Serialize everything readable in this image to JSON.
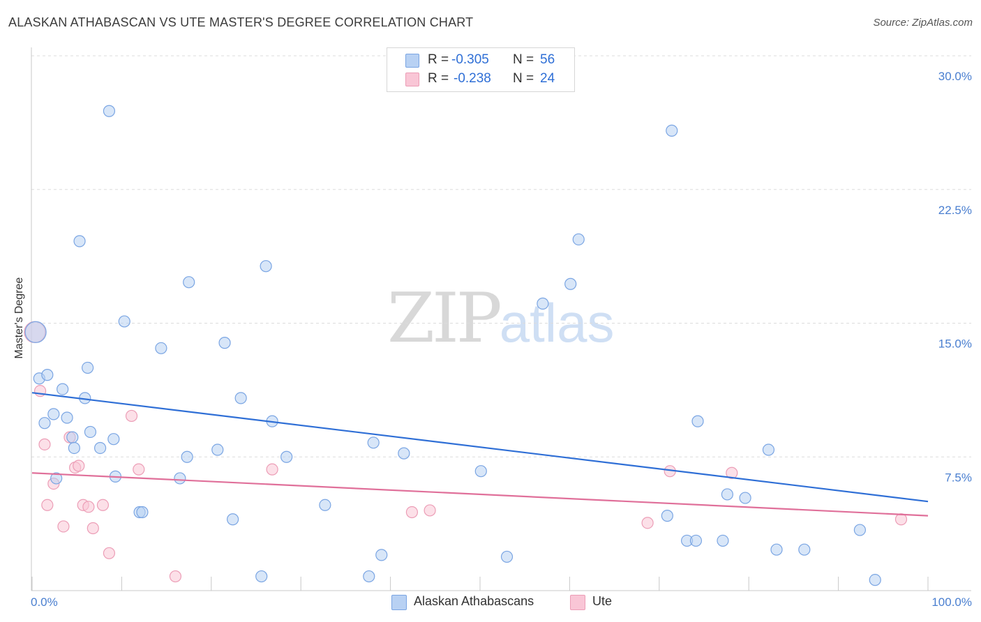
{
  "header": {
    "title": "ALASKAN ATHABASCAN VS UTE MASTER'S DEGREE CORRELATION CHART",
    "source": "Source: ZipAtlas.com"
  },
  "watermark": {
    "zip": "ZIP",
    "atlas": "atlas"
  },
  "legend": {
    "r_label": "R =",
    "n_label": "N =",
    "series1": {
      "r": "-0.305",
      "n": "56"
    },
    "series2": {
      "r": "-0.238",
      "n": "24"
    }
  },
  "bottom_legend": {
    "series1": "Alaskan Athabascans",
    "series2": "Ute"
  },
  "colors": {
    "series1_fill": "#b8d1f3",
    "series1_stroke": "#7aa5e3",
    "series1_line": "#2f6fd6",
    "series2_fill": "#f9c6d6",
    "series2_stroke": "#ec9db6",
    "series2_line": "#e0709a",
    "tick_text": "#4a7fd0",
    "grid": "#dcdcdc"
  },
  "chart_data": {
    "type": "scatter",
    "title": "ALASKAN ATHABASCAN VS UTE MASTER'S DEGREE CORRELATION CHART",
    "xlabel": "",
    "ylabel": "Master's Degree",
    "xlim": [
      0,
      100
    ],
    "ylim": [
      0,
      30
    ],
    "y_ticks": [
      7.5,
      15.0,
      22.5,
      30.0
    ],
    "y_tick_labels": [
      "7.5%",
      "15.0%",
      "22.5%",
      "30.0%"
    ],
    "x_tick_labels": [
      "0.0%",
      "100.0%"
    ],
    "series": [
      {
        "name": "Alaskan Athabascans",
        "r": -0.305,
        "n": 56,
        "trend": {
          "x": [
            0,
            100
          ],
          "y": [
            11.1,
            5.0
          ]
        },
        "points": [
          [
            0.4,
            14.5
          ],
          [
            0.8,
            11.9
          ],
          [
            1.7,
            12.1
          ],
          [
            1.4,
            9.4
          ],
          [
            2.4,
            9.9
          ],
          [
            2.7,
            6.3
          ],
          [
            3.4,
            11.3
          ],
          [
            3.9,
            9.7
          ],
          [
            4.5,
            8.6
          ],
          [
            4.7,
            8.0
          ],
          [
            5.3,
            19.6
          ],
          [
            5.9,
            10.8
          ],
          [
            6.2,
            12.5
          ],
          [
            6.5,
            8.9
          ],
          [
            7.6,
            8.0
          ],
          [
            8.6,
            26.9
          ],
          [
            9.1,
            8.5
          ],
          [
            9.3,
            6.4
          ],
          [
            10.3,
            15.1
          ],
          [
            12.0,
            4.4
          ],
          [
            12.3,
            4.4
          ],
          [
            14.4,
            13.6
          ],
          [
            16.5,
            6.3
          ],
          [
            17.3,
            7.5
          ],
          [
            17.5,
            17.3
          ],
          [
            20.7,
            7.9
          ],
          [
            21.5,
            13.9
          ],
          [
            22.4,
            4.0
          ],
          [
            23.3,
            10.8
          ],
          [
            25.6,
            0.8
          ],
          [
            26.1,
            18.2
          ],
          [
            26.8,
            9.5
          ],
          [
            28.4,
            7.5
          ],
          [
            32.7,
            4.8
          ],
          [
            37.6,
            0.8
          ],
          [
            38.1,
            8.3
          ],
          [
            39.0,
            2.0
          ],
          [
            41.5,
            7.7
          ],
          [
            50.1,
            6.7
          ],
          [
            53.0,
            1.9
          ],
          [
            57.0,
            16.1
          ],
          [
            60.1,
            17.2
          ],
          [
            61.0,
            19.7
          ],
          [
            70.9,
            4.2
          ],
          [
            71.4,
            25.8
          ],
          [
            73.1,
            2.8
          ],
          [
            74.1,
            2.8
          ],
          [
            74.3,
            9.5
          ],
          [
            77.1,
            2.8
          ],
          [
            77.6,
            5.4
          ],
          [
            79.6,
            5.2
          ],
          [
            82.2,
            7.9
          ],
          [
            83.1,
            2.3
          ],
          [
            86.2,
            2.3
          ],
          [
            92.4,
            3.4
          ],
          [
            94.1,
            0.6
          ]
        ]
      },
      {
        "name": "Ute",
        "r": -0.238,
        "n": 24,
        "trend": {
          "x": [
            0,
            100
          ],
          "y": [
            6.6,
            4.2
          ]
        },
        "points": [
          [
            0.3,
            14.5
          ],
          [
            0.9,
            11.2
          ],
          [
            1.4,
            8.2
          ],
          [
            1.7,
            4.8
          ],
          [
            2.4,
            6.0
          ],
          [
            3.5,
            3.6
          ],
          [
            4.2,
            8.6
          ],
          [
            4.8,
            6.9
          ],
          [
            5.2,
            7.0
          ],
          [
            5.7,
            4.8
          ],
          [
            6.3,
            4.7
          ],
          [
            6.8,
            3.5
          ],
          [
            7.9,
            4.8
          ],
          [
            8.6,
            2.1
          ],
          [
            11.1,
            9.8
          ],
          [
            11.9,
            6.8
          ],
          [
            16.0,
            0.8
          ],
          [
            26.8,
            6.8
          ],
          [
            42.4,
            4.4
          ],
          [
            44.4,
            4.5
          ],
          [
            68.7,
            3.8
          ],
          [
            71.2,
            6.7
          ],
          [
            78.1,
            6.6
          ],
          [
            97.0,
            4.0
          ]
        ]
      }
    ]
  }
}
